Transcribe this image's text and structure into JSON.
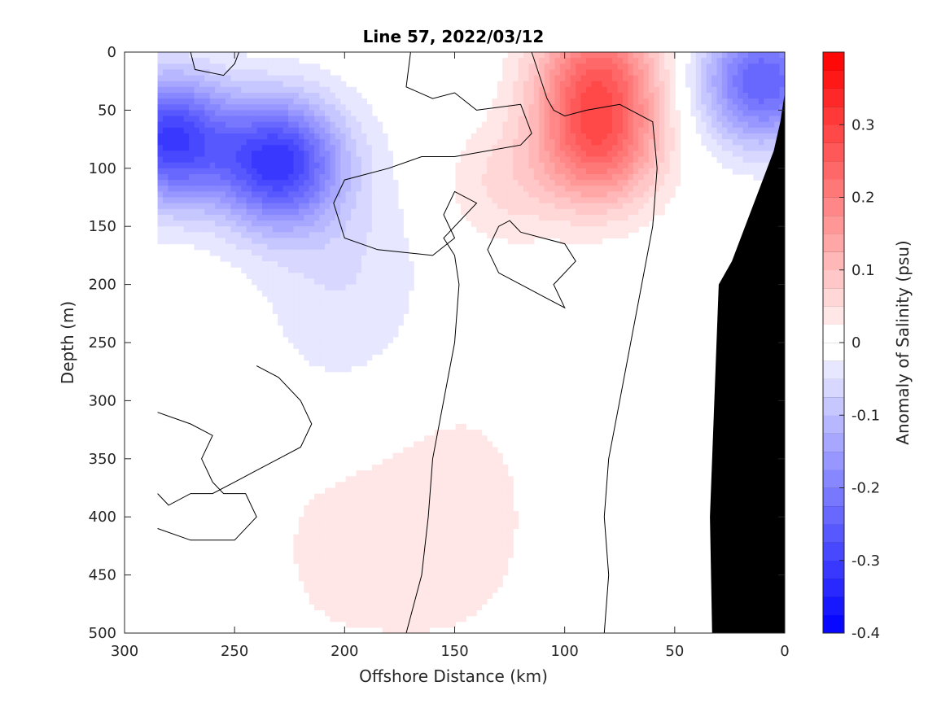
{
  "chart_data": {
    "type": "heatmap",
    "title": "Line 57, 2022/03/12",
    "xlabel": "Offshore Distance (km)",
    "ylabel": "Depth (m)",
    "xlim": [
      300,
      0
    ],
    "ylim": [
      500,
      0
    ],
    "x_reversed": true,
    "y_reversed": true,
    "x_ticks": [
      "300",
      "250",
      "200",
      "150",
      "100",
      "50",
      "0"
    ],
    "y_ticks": [
      "0",
      "50",
      "100",
      "150",
      "200",
      "250",
      "300",
      "350",
      "400",
      "450",
      "500"
    ],
    "colorbar": {
      "label": "Anomaly of Salinity (psu)",
      "range": [
        -0.4,
        0.4
      ],
      "ticks": [
        "0.3",
        "0.2",
        "0.1",
        "0",
        "-0.1",
        "-0.2",
        "-0.3",
        "-0.4"
      ],
      "tick_values": [
        0.3,
        0.2,
        0.1,
        0,
        -0.1,
        -0.2,
        -0.3,
        -0.4
      ],
      "levels": 32,
      "low_color": "#0000ff",
      "zero_color": "#ffffff",
      "high_color": "#ff0000"
    },
    "anomaly_features": [
      {
        "x_km": 280,
        "depth_m": 75,
        "value": -0.3
      },
      {
        "x_km": 230,
        "depth_m": 95,
        "value": -0.3
      },
      {
        "x_km": 10,
        "depth_m": 25,
        "value": -0.25
      },
      {
        "x_km": 85,
        "depth_m": 15,
        "value": 0.2
      },
      {
        "x_km": 85,
        "depth_m": 80,
        "value": 0.22
      },
      {
        "x_km": 130,
        "depth_m": 115,
        "value": 0.05
      },
      {
        "x_km": 200,
        "depth_m": 200,
        "value": -0.05
      },
      {
        "x_km": 150,
        "depth_m": 400,
        "value": 0.04
      },
      {
        "x_km": 205,
        "depth_m": 420,
        "value": 0.03
      }
    ],
    "bathymetry_color": "#000000",
    "grid": false
  }
}
